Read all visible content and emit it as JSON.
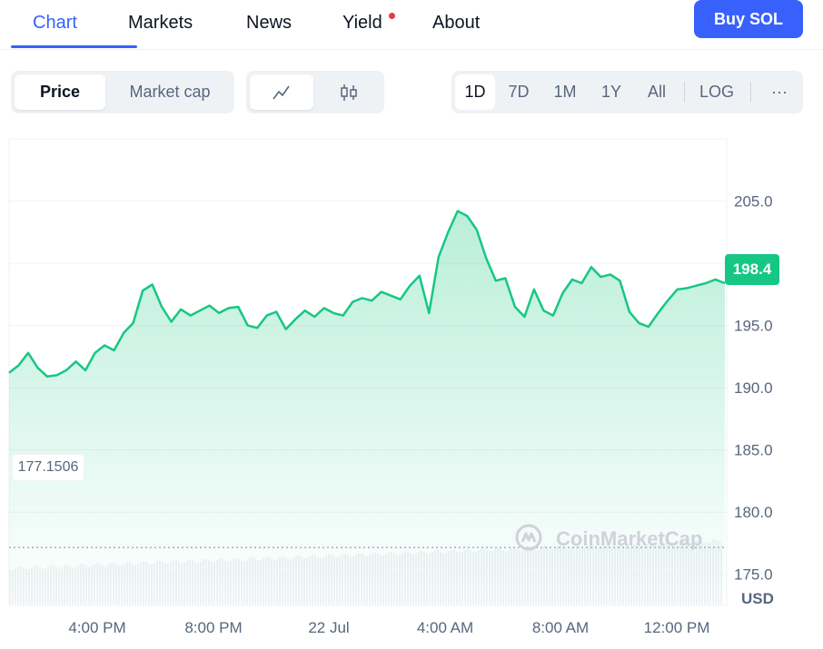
{
  "tabs": [
    {
      "label": "Chart"
    },
    {
      "label": "Markets"
    },
    {
      "label": "News"
    },
    {
      "label": "Yield"
    },
    {
      "label": "About"
    }
  ],
  "buy_button": "Buy SOL",
  "metric_toggle": [
    "Price",
    "Market cap"
  ],
  "chart_type_toggle": {
    "icons": [
      "line-chart-icon",
      "candlestick-icon"
    ],
    "selected": "line-chart-icon"
  },
  "ranges": [
    "1D",
    "7D",
    "1M",
    "1Y",
    "All"
  ],
  "selected_range": "1D",
  "log_label": "LOG",
  "more_label": "···",
  "current_price_tag": "198.4",
  "low_marker": "177.1506",
  "currency_label": "USD",
  "watermark": "CoinMarketCap",
  "colors": {
    "accent": "#3861fb",
    "up": "#16c784",
    "notification": "#ea3943"
  },
  "chart_data": {
    "type": "area",
    "y_ticks": [
      "205.0",
      "200.0",
      "195.0",
      "190.0",
      "185.0",
      "180.0",
      "175.0"
    ],
    "ylim": [
      172.5,
      210
    ],
    "x_ticks": [
      "4:00 PM",
      "8:00 PM",
      "22 Jul",
      "4:00 AM",
      "8:00 AM",
      "12:00 PM"
    ],
    "grid": true,
    "current": 198.4,
    "low_reference": 177.1506,
    "series": [
      {
        "values": [
          191.2,
          191.8,
          192.8,
          191.6,
          190.9,
          191.0,
          191.4,
          192.1,
          191.4,
          192.8,
          193.4,
          193.0,
          194.4,
          195.2,
          197.8,
          198.3,
          196.5,
          195.3,
          196.3,
          195.8,
          196.2,
          196.6,
          196.0,
          196.4,
          196.5,
          195.0,
          194.8,
          195.8,
          196.1,
          194.7,
          195.5,
          196.2,
          195.7,
          196.4,
          196.0,
          195.8,
          196.9,
          197.2,
          197.0,
          197.7,
          197.4,
          197.1,
          198.2,
          199.0,
          196.0,
          200.5,
          202.5,
          204.2,
          203.8,
          202.7,
          200.4,
          198.6,
          198.8,
          196.5,
          195.7,
          197.9,
          196.2,
          195.8,
          197.6,
          198.7,
          198.4,
          199.7,
          198.9,
          199.1,
          198.6,
          196.1,
          195.2,
          194.9,
          196.0,
          197.0,
          197.9,
          198.0,
          198.2,
          198.4,
          198.7,
          198.4
        ]
      }
    ],
    "volume_band": "relative volume, rising left to right"
  }
}
